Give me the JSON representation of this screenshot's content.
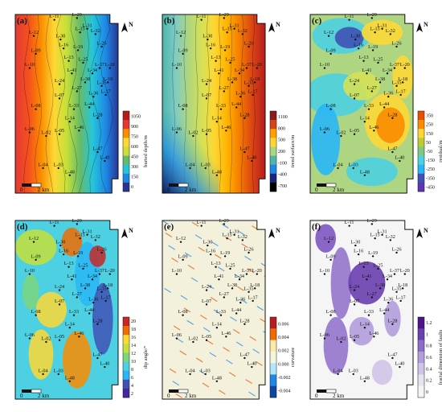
{
  "panels": [
    {
      "id": "a",
      "letter": "(a)",
      "colorbar": {
        "title": "buried depth/m",
        "ticks": [
          "1050",
          "900",
          "750",
          "600",
          "450",
          "300",
          "150",
          "0"
        ],
        "colors": [
          "#b71c1c",
          "#e53935",
          "#fb8c00",
          "#fdd835",
          "#cddc39",
          "#66bb6a",
          "#26c6da",
          "#1e88e5",
          "#283593"
        ]
      }
    },
    {
      "id": "b",
      "letter": "(b)",
      "colorbar": {
        "title": "trend surface/m",
        "ticks": [
          "1100",
          "800",
          "500",
          "200",
          "-100",
          "-400",
          "-700"
        ],
        "colors": [
          "#8e1b1b",
          "#d84315",
          "#ffa000",
          "#fdd835",
          "#aed581",
          "#4db6ac",
          "#1e88e5",
          "#1a237e",
          "#000000"
        ]
      }
    },
    {
      "id": "c",
      "letter": "(c)",
      "colorbar": {
        "title": "residual/m",
        "ticks": [
          "350",
          "250",
          "150",
          "50",
          "-50",
          "-150",
          "-250",
          "-350",
          "-450"
        ],
        "colors": [
          "#e65100",
          "#fb8c00",
          "#fdd835",
          "#c0ca33",
          "#81c784",
          "#4dd0e1",
          "#29b6f6",
          "#3f51b5",
          "#5e35b1"
        ]
      }
    },
    {
      "id": "d",
      "letter": "(d)",
      "colorbar": {
        "title": "dip angle/°",
        "ticks": [
          "20",
          "18",
          "16",
          "14",
          "12",
          "10",
          "8",
          "6",
          "4",
          "2"
        ],
        "colors": [
          "#c62828",
          "#ef6c00",
          "#fdd835",
          "#c6e03a",
          "#7cd67c",
          "#4dd0e1",
          "#29b6f6",
          "#3f51b5",
          "#4527a0"
        ]
      }
    },
    {
      "id": "e",
      "letter": "(e)",
      "colorbar": {
        "title": "curvature",
        "ticks": [
          "0.006",
          "0.004",
          "0.002",
          "0.000",
          "-0.002",
          "-0.004"
        ],
        "colors": [
          "#b71c1c",
          "#ef6c00",
          "#fbe9a7",
          "#f5f5dc",
          "#b3e5fc",
          "#1e88e5",
          "#0d47a1"
        ]
      }
    },
    {
      "id": "f",
      "letter": "(f)",
      "colorbar": {
        "title": "fractal dimension of faults",
        "ticks": [
          "1.2",
          "1",
          "0.8",
          "0.6",
          "0.4",
          "0.2",
          "0"
        ],
        "colors": [
          "#4a148c",
          "#6a3fb0",
          "#8e6cc9",
          "#b39ddb",
          "#d1c4e9",
          "#e8e3f1",
          "#f5f5f5"
        ]
      }
    }
  ],
  "wells": [
    "L-11",
    "L-29",
    "L-12",
    "L-30",
    "L-15",
    "L-09",
    "L-16",
    "L-10",
    "L-13",
    "L-19",
    "L-31",
    "L-32",
    "L-25",
    "L-26",
    "L-41",
    "L-34",
    "L-37",
    "L-24",
    "L-27",
    "L-07",
    "L-08",
    "L-14",
    "L-28",
    "L-06",
    "L-05",
    "L-02",
    "L-46",
    "L-47",
    "L-04",
    "L-03",
    "L-48",
    "L-44",
    "L-18",
    "L-17",
    "L-20",
    "L-35",
    "L-36",
    "L-38",
    "L-33",
    "L-40"
  ],
  "scalebar": {
    "left": "0",
    "right": "2 km"
  },
  "north": "N"
}
